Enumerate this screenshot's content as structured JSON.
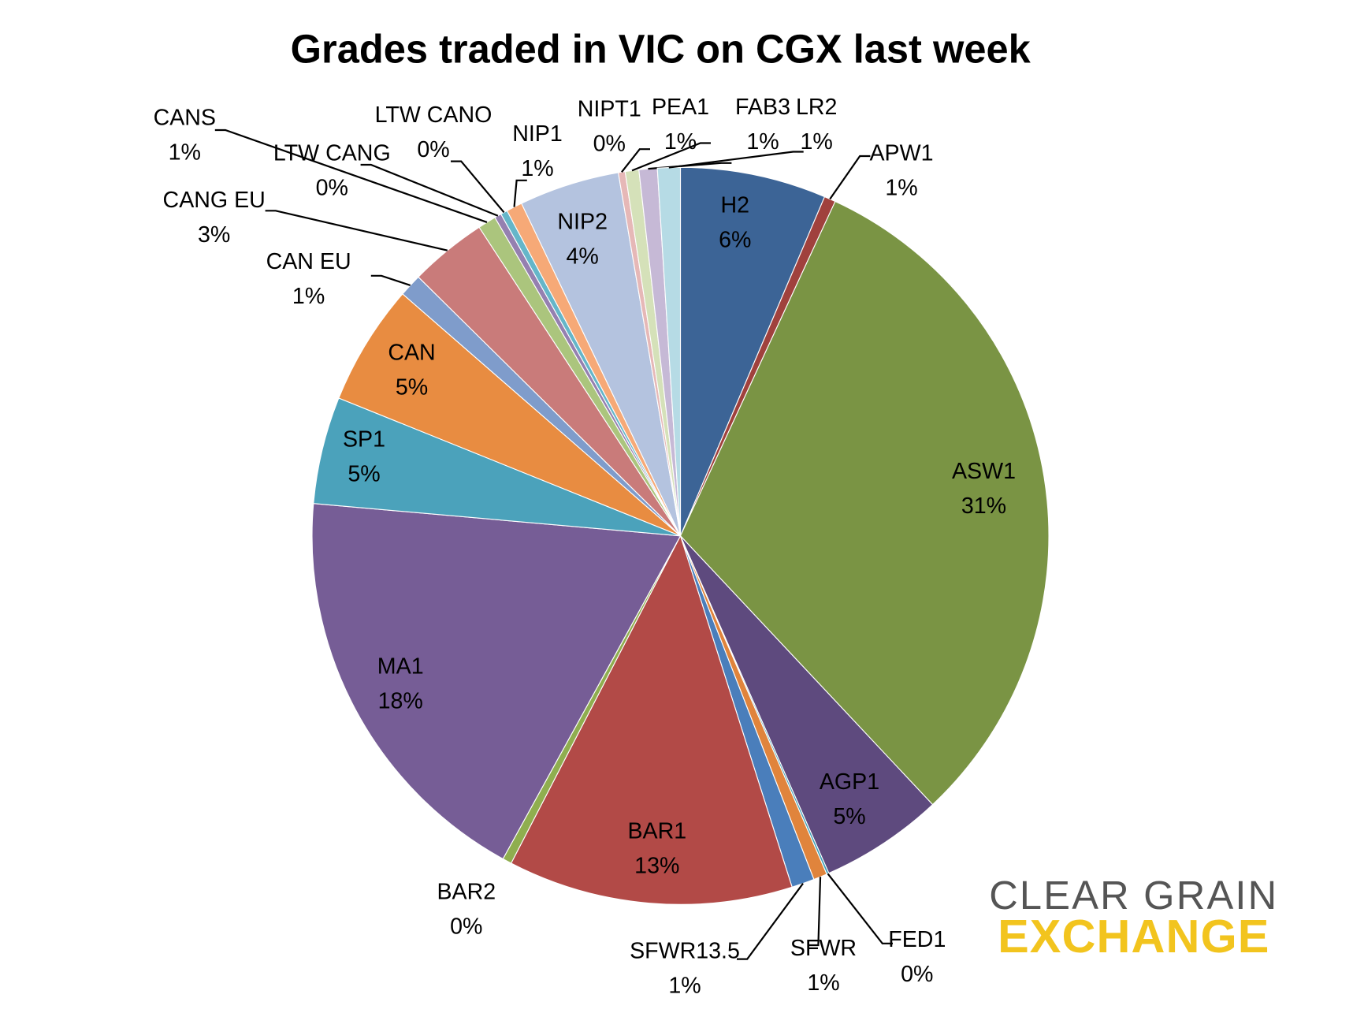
{
  "chart_data": {
    "type": "pie",
    "title": "Grades traded in VIC on CGX last week",
    "categories": [
      "H2",
      "APW1",
      "ASW1",
      "AGP1",
      "FED1",
      "SFWR",
      "SFWR13.5",
      "BAR1",
      "BAR2",
      "MA1",
      "SP1",
      "CAN",
      "CAN EU",
      "CANG EU",
      "CANS",
      "LTW CANG",
      "LTW CANO",
      "NIP1",
      "NIP2",
      "NIPT1",
      "PEA1",
      "FAB3",
      "LR2"
    ],
    "values": [
      6.4,
      0.5,
      31.1,
      5.4,
      0.1,
      0.6,
      1.0,
      12.5,
      0.4,
      18.4,
      4.7,
      5.3,
      1.0,
      3.4,
      0.8,
      0.3,
      0.3,
      0.7,
      4.4,
      0.3,
      0.6,
      0.8,
      1.0
    ],
    "value_labels": [
      "6%",
      "1%",
      "31%",
      "5%",
      "0%",
      "1%",
      "1%",
      "13%",
      "0%",
      "18%",
      "5%",
      "5%",
      "1%",
      "3%",
      "1%",
      "0%",
      "0%",
      "1%",
      "4%",
      "0%",
      "1%",
      "1%",
      "1%"
    ],
    "colors": [
      "#3c6496",
      "#a0413d",
      "#7a9444",
      "#5e4a7e",
      "#3fa0b8",
      "#e0843c",
      "#4a7ebb",
      "#b24a47",
      "#8fae4f",
      "#765d96",
      "#4ba2bb",
      "#e88c41",
      "#7f9ccb",
      "#c97b7a",
      "#abc57d",
      "#9580b0",
      "#65b6c9",
      "#f6a977",
      "#b4c3df",
      "#e6b8b7",
      "#d5e1b9",
      "#c6b9d6",
      "#b6dbe5"
    ]
  },
  "logo": {
    "line1": "CLEAR GRAIN",
    "line2": "EXCHANGE"
  }
}
